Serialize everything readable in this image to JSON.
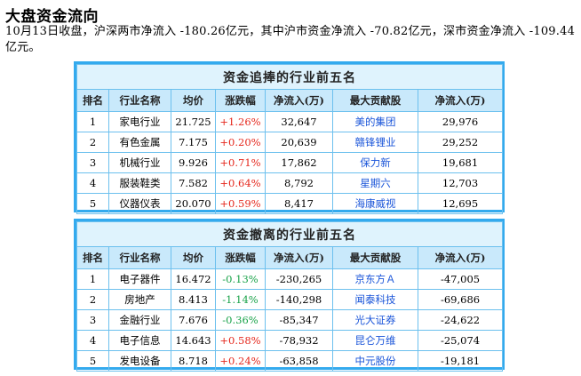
{
  "heading": "大盘资金流向",
  "summary": "10月13日收盘，沪深两市净流入 -180.26亿元，其中沪市资金净流入 -70.82亿元，深市资金净流入 -109.44亿元。",
  "columns": [
    "排名",
    "行业名称",
    "均价",
    "涨跌幅",
    "净流入(万)",
    "最大贡献股",
    "净流入(万)"
  ],
  "inflow": {
    "caption": "资金追捧的行业前五名",
    "rows": [
      {
        "rank": "1",
        "industry": "家电行业",
        "price": "21.725",
        "change": "+1.26%",
        "net": "32,647",
        "stock": "美的集团",
        "stock_net": "29,976"
      },
      {
        "rank": "2",
        "industry": "有色金属",
        "price": "7.175",
        "change": "+0.20%",
        "net": "20,639",
        "stock": "赣锋锂业",
        "stock_net": "29,252"
      },
      {
        "rank": "3",
        "industry": "机械行业",
        "price": "9.926",
        "change": "+0.71%",
        "net": "17,862",
        "stock": "保力新",
        "stock_net": "19,681"
      },
      {
        "rank": "4",
        "industry": "服装鞋类",
        "price": "7.582",
        "change": "+0.64%",
        "net": "8,792",
        "stock": "星期六",
        "stock_net": "12,703"
      },
      {
        "rank": "5",
        "industry": "仪器仪表",
        "price": "20.070",
        "change": "+0.59%",
        "net": "8,417",
        "stock": "海康威视",
        "stock_net": "12,695"
      }
    ]
  },
  "outflow": {
    "caption": "资金撤离的行业前五名",
    "rows": [
      {
        "rank": "1",
        "industry": "电子器件",
        "price": "16.472",
        "change": "-0.13%",
        "net": "-230,265",
        "stock": "京东方Ａ",
        "stock_net": "-47,005"
      },
      {
        "rank": "2",
        "industry": "房地产",
        "price": "8.413",
        "change": "-1.14%",
        "net": "-140,298",
        "stock": "闻泰科技",
        "stock_net": "-69,686"
      },
      {
        "rank": "3",
        "industry": "金融行业",
        "price": "7.676",
        "change": "-0.36%",
        "net": "-85,347",
        "stock": "光大证券",
        "stock_net": "-24,622"
      },
      {
        "rank": "4",
        "industry": "电子信息",
        "price": "14.643",
        "change": "+0.58%",
        "net": "-78,932",
        "stock": "昆仑万维",
        "stock_net": "-25,074"
      },
      {
        "rank": "5",
        "industry": "发电设备",
        "price": "8.718",
        "change": "+0.24%",
        "net": "-63,858",
        "stock": "中元股份",
        "stock_net": "-19,181"
      }
    ]
  },
  "colors": {
    "border": "#33aaee",
    "up": "#e5271c",
    "down": "#1aa34a",
    "link": "#1a55d9"
  }
}
